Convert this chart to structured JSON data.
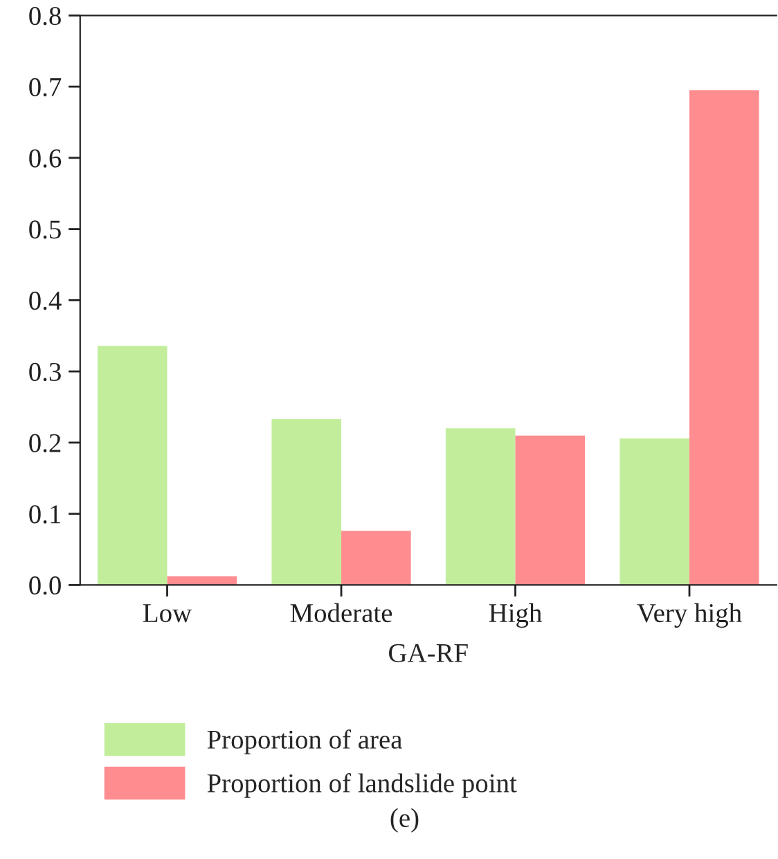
{
  "chart_data": {
    "type": "bar",
    "xlabel": "GA-RF",
    "categories": [
      "Low",
      "Moderate",
      "High",
      "Very high"
    ],
    "series": [
      {
        "name": "Proportion of area",
        "color": "#c2ee9c",
        "values": [
          0.336,
          0.233,
          0.22,
          0.206
        ]
      },
      {
        "name": "Proportion of landslide point",
        "color": "#ff8c8f",
        "values": [
          0.012,
          0.076,
          0.21,
          0.695
        ]
      }
    ],
    "ylim": [
      0,
      0.8
    ],
    "yticks": [
      {
        "value": 0,
        "label": "0.0"
      },
      0.1,
      0.2,
      0.3,
      0.4,
      0.5,
      0.6,
      0.7,
      0.8
    ],
    "grid": false,
    "legend": "bottom",
    "annotations": [
      "(e)"
    ]
  }
}
